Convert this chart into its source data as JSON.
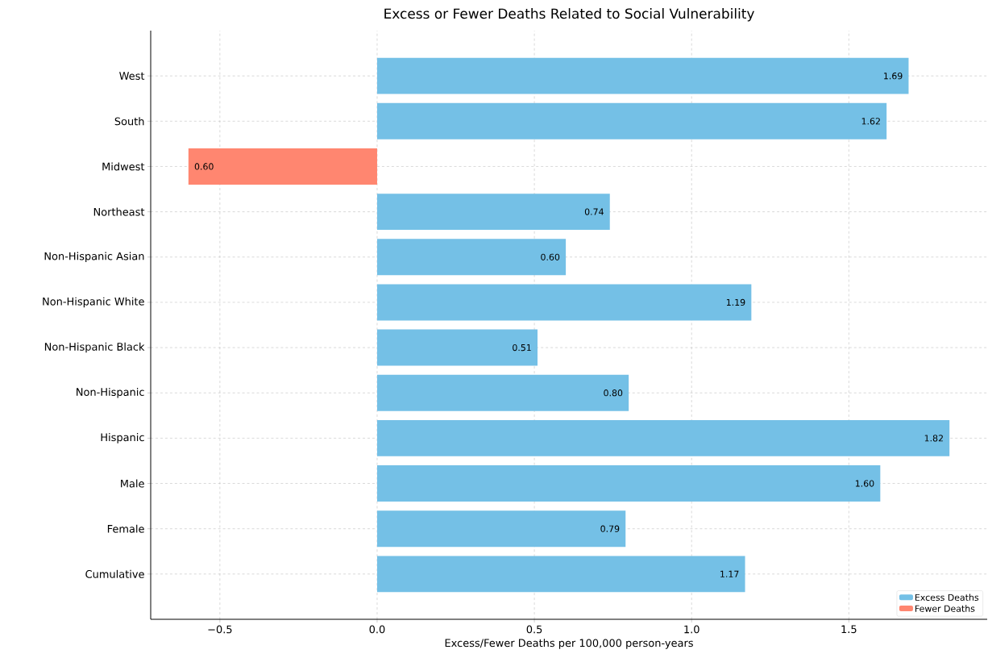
{
  "chart_data": {
    "type": "bar",
    "orientation": "horizontal",
    "title": "Excess or Fewer Deaths Related to Social Vulnerability",
    "xlabel": "Excess/Fewer Deaths per 100,000 person-years",
    "categories": [
      "West",
      "South",
      "Midwest",
      "Northeast",
      "Non-Hispanic Asian",
      "Non-Hispanic White",
      "Non-Hispanic Black",
      "Non-Hispanic",
      "Hispanic",
      "Male",
      "Female",
      "Cumulative"
    ],
    "series": [
      {
        "name": "Excess Deaths",
        "color": "#74c0e6",
        "values": [
          1.69,
          1.62,
          null,
          0.74,
          0.6,
          1.19,
          0.51,
          0.8,
          1.82,
          1.6,
          0.79,
          1.17
        ],
        "value_labels": [
          "1.69",
          "1.62",
          null,
          "0.74",
          "0.60",
          "1.19",
          "0.51",
          "0.80",
          "1.82",
          "1.60",
          "0.79",
          "1.17"
        ]
      },
      {
        "name": "Fewer Deaths",
        "color": "#ff8670",
        "values": [
          null,
          null,
          0.6,
          null,
          null,
          null,
          null,
          null,
          null,
          null,
          null,
          null
        ],
        "base": [
          null,
          null,
          -0.6,
          null,
          null,
          null,
          null,
          null,
          null,
          null,
          null,
          null
        ],
        "value_labels": [
          null,
          null,
          "0.60",
          null,
          null,
          null,
          null,
          null,
          null,
          null,
          null,
          null
        ]
      }
    ],
    "xlim": [
      -0.72,
      1.94
    ],
    "xticks": [
      {
        "value": -0.5,
        "label": "−0.5"
      },
      {
        "value": 0,
        "label": "0.0"
      },
      {
        "value": 0.5,
        "label": "0.5"
      },
      {
        "value": 1,
        "label": "1.0"
      },
      {
        "value": 1.5,
        "label": "1.5"
      }
    ],
    "grid": true,
    "legend": "bottom right"
  }
}
